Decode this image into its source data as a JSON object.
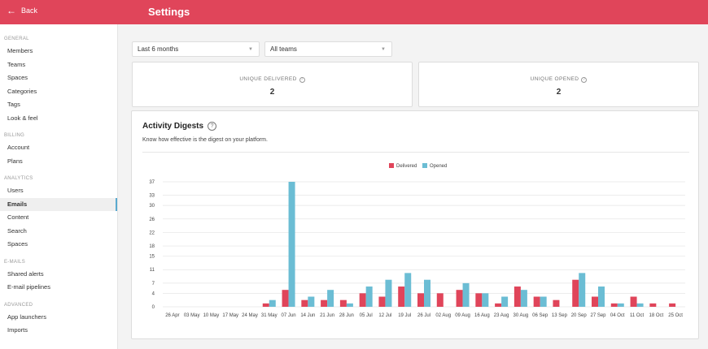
{
  "header": {
    "back_label": "Back",
    "title": "Settings"
  },
  "sidebar": {
    "sections": [
      {
        "title": "GENERAL",
        "items": [
          "Members",
          "Teams",
          "Spaces",
          "Categories",
          "Tags",
          "Look & feel"
        ]
      },
      {
        "title": "BILLING",
        "items": [
          "Account",
          "Plans"
        ]
      },
      {
        "title": "ANALYTICS",
        "items": [
          "Users",
          "Emails",
          "Content",
          "Search",
          "Spaces"
        ]
      },
      {
        "title": "E-MAILS",
        "items": [
          "Shared alerts",
          "E-mail pipelines"
        ]
      },
      {
        "title": "ADVANCED",
        "items": [
          "App launchers",
          "Imports"
        ]
      }
    ],
    "active": "Emails"
  },
  "filters": {
    "period": "Last 6 months",
    "teams": "All teams"
  },
  "stats": [
    {
      "label": "UNIQUE DELIVERED",
      "value": "2"
    },
    {
      "label": "UNIQUE OPENED",
      "value": "2"
    }
  ],
  "chart_card": {
    "title": "Activity Digests",
    "subtitle": "Know how effective is the digest on your platform."
  },
  "colors": {
    "delivered": "#e0455a",
    "opened": "#6bbdd4",
    "accent": "#e0455a"
  },
  "chart_data": {
    "type": "bar",
    "categories": [
      "26 Apr",
      "03 May",
      "10 May",
      "17 May",
      "24 May",
      "31 May",
      "07 Jun",
      "14 Jun",
      "21 Jun",
      "28 Jun",
      "05 Jul",
      "12 Jul",
      "19 Jul",
      "26 Jul",
      "02 Aug",
      "09 Aug",
      "16 Aug",
      "23 Aug",
      "30 Aug",
      "06 Sep",
      "13 Sep",
      "20 Sep",
      "27 Sep",
      "04 Oct",
      "11 Oct",
      "18 Oct",
      "25 Oct"
    ],
    "series": [
      {
        "name": "Delivered",
        "values": [
          0,
          0,
          0,
          0,
          0,
          1,
          5,
          2,
          2,
          2,
          4,
          3,
          6,
          4,
          4,
          5,
          4,
          1,
          6,
          3,
          2,
          8,
          3,
          1,
          3,
          1,
          1
        ]
      },
      {
        "name": "Opened",
        "values": [
          0,
          0,
          0,
          0,
          0,
          2,
          37,
          3,
          5,
          1,
          6,
          8,
          10,
          8,
          0,
          7,
          4,
          3,
          5,
          3,
          0,
          10,
          6,
          1,
          1,
          0,
          0
        ]
      }
    ],
    "yticks": [
      0,
      4,
      7,
      11,
      15,
      18,
      22,
      26,
      30,
      33,
      37
    ],
    "ylim": [
      0,
      37
    ],
    "legend_position": "top-center",
    "grid": true
  }
}
